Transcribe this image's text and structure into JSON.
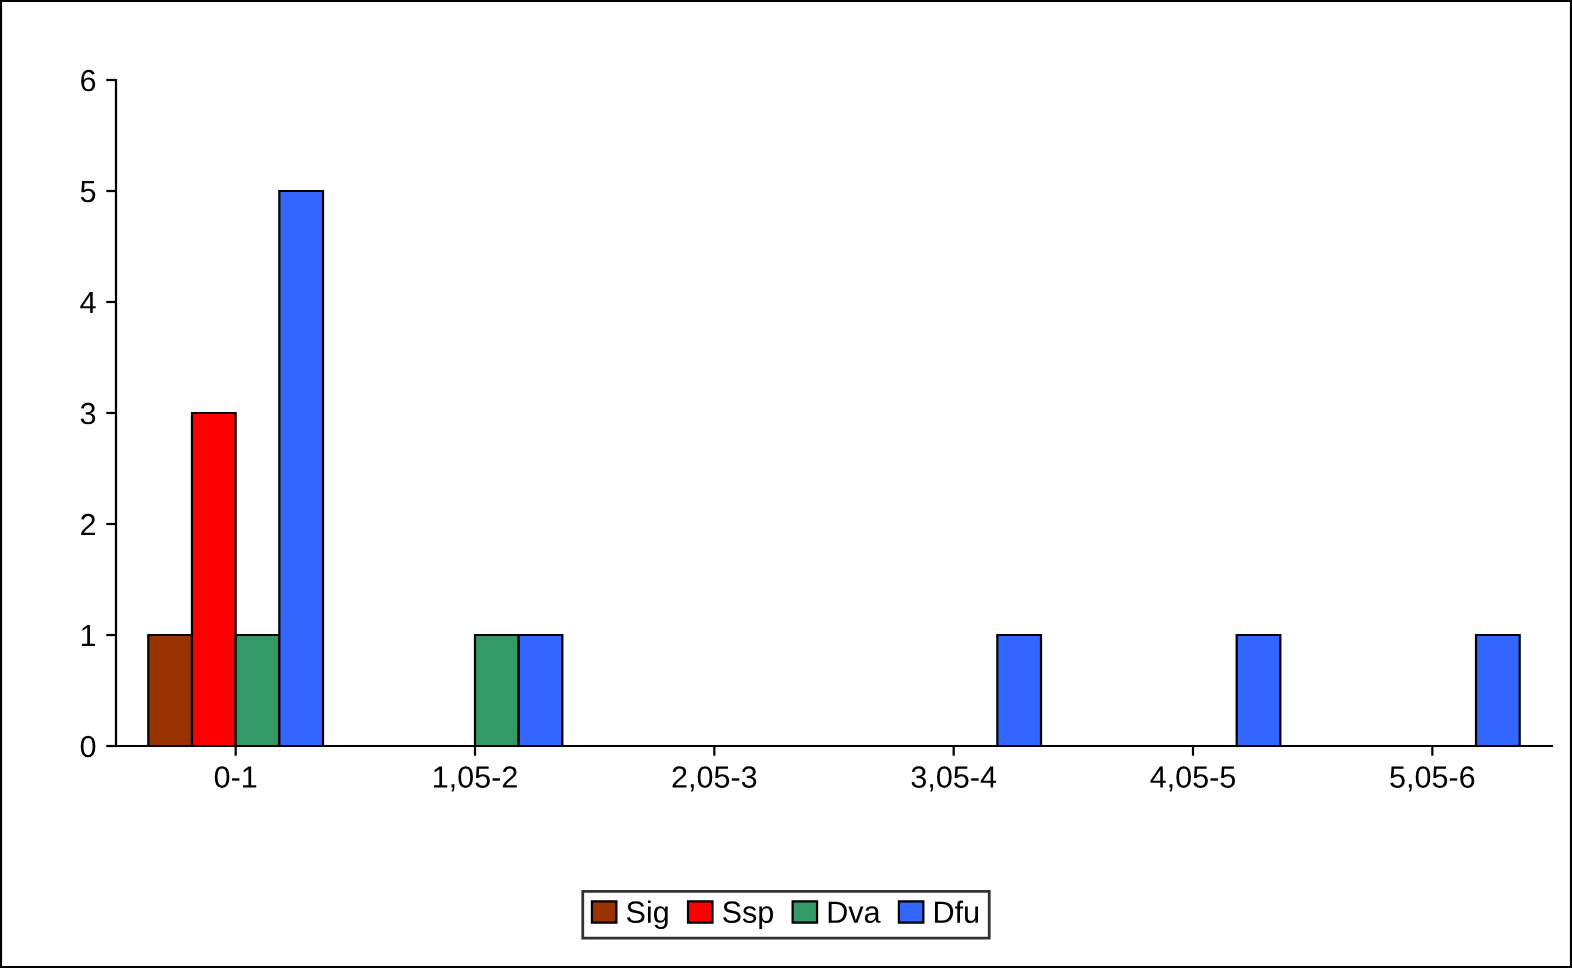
{
  "chart_data": {
    "type": "bar",
    "categories": [
      "0-1",
      "1,05-2",
      "2,05-3",
      "3,05-4",
      "4,05-5",
      "5,05-6"
    ],
    "series": [
      {
        "name": "Sig",
        "color": "#993300",
        "values": [
          1,
          null,
          null,
          null,
          null,
          null
        ]
      },
      {
        "name": "Ssp",
        "color": "#ff0000",
        "values": [
          3,
          null,
          null,
          null,
          null,
          null
        ]
      },
      {
        "name": "Dva",
        "color": "#339966",
        "values": [
          1,
          1,
          null,
          null,
          null,
          null
        ]
      },
      {
        "name": "Dfu",
        "color": "#3366ff",
        "values": [
          5,
          1,
          null,
          1,
          1,
          1
        ]
      }
    ],
    "ylim": [
      0,
      6
    ],
    "yticks": [
      0,
      1,
      2,
      3,
      4,
      5,
      6
    ],
    "grid": false,
    "legend": "bottom"
  }
}
